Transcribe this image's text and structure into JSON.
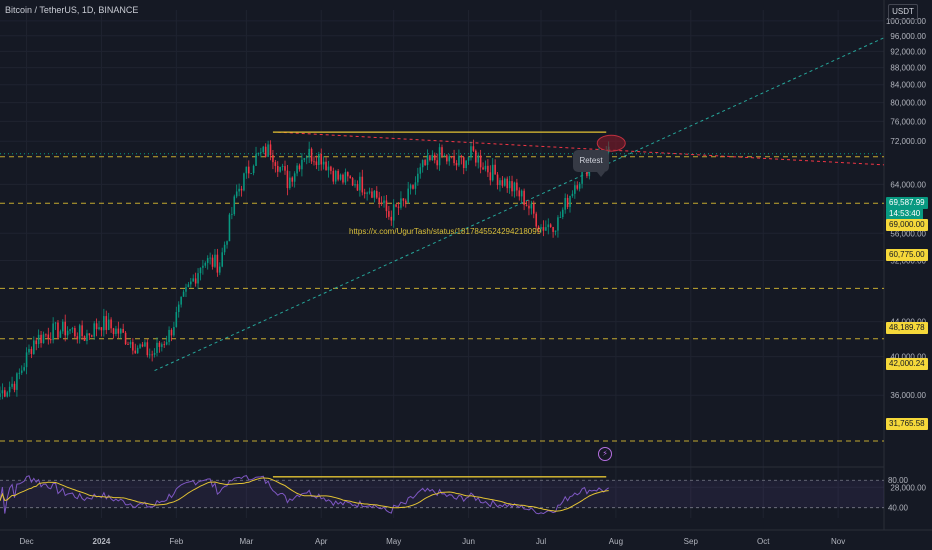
{
  "header": {
    "symbol_title": "Bitcoin / TetherUS, 1D, BINANCE",
    "currency": "USDT"
  },
  "annotation": {
    "retest_label": "Retest"
  },
  "watermark": {
    "text": "https://x.com/UgurTash/status/1817845524294218099"
  },
  "icons": {
    "bolt": "lightning-icon"
  },
  "colors": {
    "up_candle": "#089981",
    "down_candle": "#f23645",
    "level_line": "#e3c333",
    "support_trendline": "#26a69a",
    "resistance_trendline": "#f23645",
    "rsi_line": "#7e57c2",
    "rsi_ma": "#e3c333",
    "background": "#151924"
  },
  "price_tags": {
    "current_price": "69,587.99",
    "countdown": "14:53:40",
    "level_69000": "69,000.00",
    "level_60775": "60,775.00",
    "level_48189": "48,189.78",
    "level_42000": "42,000.24",
    "level_31765": "31,765.58"
  },
  "chart_data": {
    "type": "candlestick",
    "title": "Bitcoin / TetherUS, 1D, BINANCE",
    "y_axis": {
      "scale": "log",
      "range": [
        30000,
        103000
      ],
      "tick_labels": [
        "100,000.00",
        "96,000.00",
        "92,000.00",
        "88,000.00",
        "84,000.00",
        "80,000.00",
        "76,000.00",
        "72,000.00",
        "64,000.00",
        "56,000.00",
        "52,000.00",
        "44,000.00",
        "40,000.00",
        "36,000.00",
        "28,000.00"
      ]
    },
    "x_axis": {
      "range": [
        "2023-11-20",
        "2024-11-20"
      ],
      "tick_labels": [
        "Dec",
        "2024",
        "Feb",
        "Mar",
        "Apr",
        "May",
        "Jun",
        "Jul",
        "Aug",
        "Sep",
        "Oct",
        "Nov"
      ]
    },
    "grid": true,
    "levels": [
      {
        "label": "69,000.00",
        "value": 69000
      },
      {
        "label": "60,775.00",
        "value": 60775
      },
      {
        "label": "48,189.78",
        "value": 48189.78
      },
      {
        "label": "42,000.24",
        "value": 42000.24
      },
      {
        "label": "31,765.58",
        "value": 31765.58
      }
    ],
    "horizontal_resistance": {
      "value": 73800,
      "from": "2024-03-12",
      "to": "2024-07-28"
    },
    "trendlines": [
      {
        "kind": "support",
        "from": [
          "2024-01-23",
          38500
        ],
        "to": [
          "2024-11-20",
          95500
        ]
      },
      {
        "kind": "resistance",
        "from": [
          "2024-03-14",
          73800
        ],
        "to": [
          "2024-11-20",
          67500
        ]
      }
    ],
    "retest_zone": {
      "date": "2024-07-28",
      "value": 72000
    },
    "weekly_closes": [
      [
        "2023-11-20",
        36200
      ],
      [
        "2023-11-27",
        37500
      ],
      [
        "2023-12-04",
        41800
      ],
      [
        "2023-12-11",
        42800
      ],
      [
        "2023-12-18",
        43100
      ],
      [
        "2023-12-25",
        42300
      ],
      [
        "2024-01-01",
        43900
      ],
      [
        "2024-01-08",
        42800
      ],
      [
        "2024-01-15",
        41300
      ],
      [
        "2024-01-22",
        40200
      ],
      [
        "2024-01-29",
        42500
      ],
      [
        "2024-02-05",
        47500
      ],
      [
        "2024-02-12",
        52000
      ],
      [
        "2024-02-19",
        51500
      ],
      [
        "2024-02-26",
        62500
      ],
      [
        "2024-03-04",
        68500
      ],
      [
        "2024-03-11",
        70500
      ],
      [
        "2024-03-18",
        64500
      ],
      [
        "2024-03-25",
        69700
      ],
      [
        "2024-04-01",
        69000
      ],
      [
        "2024-04-08",
        65000
      ],
      [
        "2024-04-15",
        64500
      ],
      [
        "2024-04-22",
        63200
      ],
      [
        "2024-04-29",
        58800
      ],
      [
        "2024-05-06",
        61000
      ],
      [
        "2024-05-13",
        67000
      ],
      [
        "2024-05-20",
        69200
      ],
      [
        "2024-05-27",
        67600
      ],
      [
        "2024-06-03",
        69600
      ],
      [
        "2024-06-10",
        66300
      ],
      [
        "2024-06-17",
        64200
      ],
      [
        "2024-06-24",
        61500
      ],
      [
        "2024-07-01",
        57000
      ],
      [
        "2024-07-08",
        57800
      ],
      [
        "2024-07-15",
        64200
      ],
      [
        "2024-07-22",
        68200
      ],
      [
        "2024-07-29",
        69588
      ]
    ],
    "rsi": {
      "levels": [
        80,
        40
      ],
      "horizontal_marker": 85
    }
  }
}
